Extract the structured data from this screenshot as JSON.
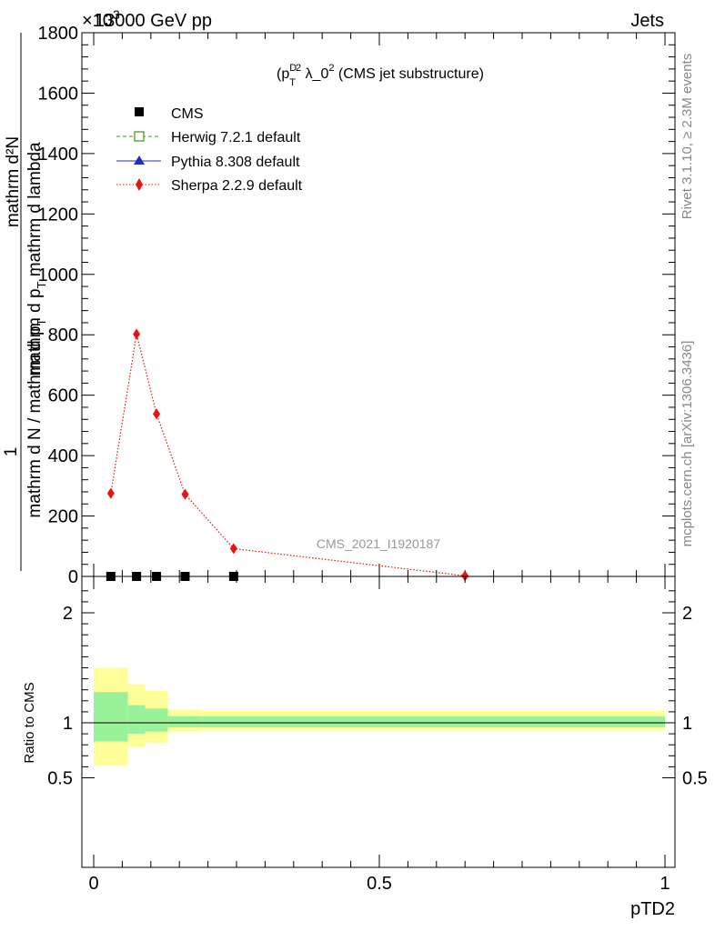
{
  "header": {
    "energy_label": "13000 GeV pp",
    "process_label": "Jets",
    "exponent_label": "×10",
    "exponent_power": "3",
    "side_label_top": "Rivet 3.1.10, ≥ 2.3M events",
    "side_label_bottom": "mcplots.cern.ch [arXiv:1306.3436]",
    "analysis_id": "CMS_2021_I1920187"
  },
  "chart_data": [
    {
      "type": "line",
      "title_pre": "(p",
      "title_sup1": "D",
      "title_sub": "T",
      "title_sup2": "2",
      "title_post": " λ_0",
      "title_sup3": "2",
      "title_tail": " (CMS jet substructure)",
      "ylabel_numerator": "mathrm d²N",
      "ylabel_numerator_mid": "mathrm d p",
      "ylabel_numerator_sub": "T",
      "ylabel_numerator_end": " mathrm d lambda",
      "ylabel_one": "1",
      "ylabel_denominator": "mathrm d N / mathrm d p",
      "ylabel_denominator_sub": "T",
      "ylim": [
        0,
        1800
      ],
      "yticks": [
        0,
        200,
        400,
        600,
        800,
        1000,
        1200,
        1400,
        1600,
        1800
      ],
      "ytick_labels": [
        "0",
        "200",
        "400",
        "600",
        "800",
        "1000",
        "1200",
        "1400",
        "1600",
        "1800"
      ],
      "xlim": [
        -0.02,
        1.0
      ],
      "legend": [
        {
          "name": "CMS",
          "color": "#000000",
          "marker": "square"
        },
        {
          "name": "Herwig 7.2.1 default",
          "color": "#4a9a1e",
          "marker": "open-square"
        },
        {
          "name": "Pythia 8.308 default",
          "color": "#1f2fbf",
          "marker": "triangle"
        },
        {
          "name": "Sherpa 2.2.9 default",
          "color": "#e8120f",
          "marker": "diamond"
        }
      ],
      "series": [
        {
          "name": "CMS",
          "x": [
            0.03,
            0.075,
            0.11,
            0.16,
            0.245
          ],
          "y": [
            0,
            0,
            0,
            0,
            0
          ]
        },
        {
          "name": "Sherpa 2.2.9 default",
          "x": [
            0.03,
            0.075,
            0.11,
            0.16,
            0.245,
            0.65
          ],
          "y": [
            275,
            802,
            538,
            272,
            92,
            2
          ]
        }
      ]
    },
    {
      "type": "area",
      "ylabel": "Ratio to CMS",
      "xlabel": "pTD2",
      "ylim": [
        0.35,
        2.3
      ],
      "yticks": [
        0.5,
        1,
        2
      ],
      "ytick_labels": [
        "0.5",
        "1",
        "2"
      ],
      "xticks": [
        0,
        0.5,
        1
      ],
      "xtick_labels": [
        "0",
        "0.5",
        "1"
      ],
      "xlim": [
        -0.02,
        1.0
      ],
      "bins": [
        {
          "lo": 0.0,
          "hi": 0.06,
          "stat_lo": 0.83,
          "stat_hi": 1.28,
          "tot_lo": 0.61,
          "tot_hi": 1.5
        },
        {
          "lo": 0.06,
          "hi": 0.09,
          "stat_lo": 0.9,
          "stat_hi": 1.16,
          "tot_lo": 0.78,
          "tot_hi": 1.35
        },
        {
          "lo": 0.09,
          "hi": 0.13,
          "stat_lo": 0.92,
          "stat_hi": 1.13,
          "tot_lo": 0.82,
          "tot_hi": 1.29
        },
        {
          "lo": 0.13,
          "hi": 0.19,
          "stat_lo": 0.96,
          "stat_hi": 1.06,
          "tot_lo": 0.92,
          "tot_hi": 1.12
        },
        {
          "lo": 0.19,
          "hi": 1.0,
          "stat_lo": 0.96,
          "stat_hi": 1.06,
          "tot_lo": 0.93,
          "tot_hi": 1.11
        }
      ],
      "colors": {
        "stat": "#99f299",
        "total": "#ffff99"
      }
    }
  ]
}
